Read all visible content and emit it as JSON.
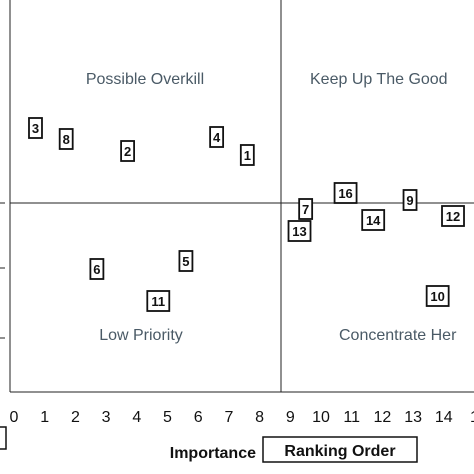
{
  "chart_data": {
    "type": "scatter",
    "xlabel": "Importance",
    "xlabel_boxed": "Ranking Order",
    "x_ticks": [
      "0",
      "1",
      "2",
      "3",
      "4",
      "5",
      "6",
      "7",
      "8",
      "9",
      "10",
      "11",
      "12",
      "13",
      "14",
      "1"
    ],
    "xlim": [
      0,
      15.3
    ],
    "x_divider": 8.8,
    "quadrants": {
      "top_left": "Possible Overkill",
      "top_right": "Keep Up The Good",
      "bottom_left": "Low Priority",
      "bottom_right": "Concentrate Her"
    },
    "points": [
      {
        "label": "1",
        "x": 7.6,
        "y": 0.48
      },
      {
        "label": "2",
        "x": 3.7,
        "y": 0.52
      },
      {
        "label": "3",
        "x": 0.7,
        "y": 0.75
      },
      {
        "label": "4",
        "x": 6.6,
        "y": 0.66
      },
      {
        "label": "5",
        "x": 5.6,
        "y": -0.58
      },
      {
        "label": "6",
        "x": 2.7,
        "y": -0.66
      },
      {
        "label": "7",
        "x": 9.5,
        "y": -0.06
      },
      {
        "label": "8",
        "x": 1.7,
        "y": 0.64
      },
      {
        "label": "9",
        "x": 12.9,
        "y": 0.03
      },
      {
        "label": "10",
        "x": 13.8,
        "y": -0.93
      },
      {
        "label": "11",
        "x": 4.7,
        "y": -0.98
      },
      {
        "label": "12",
        "x": 14.3,
        "y": -0.13
      },
      {
        "label": "13",
        "x": 9.3,
        "y": -0.28
      },
      {
        "label": "14",
        "x": 11.7,
        "y": -0.17
      },
      {
        "label": "16",
        "x": 10.8,
        "y": 0.1
      }
    ]
  }
}
